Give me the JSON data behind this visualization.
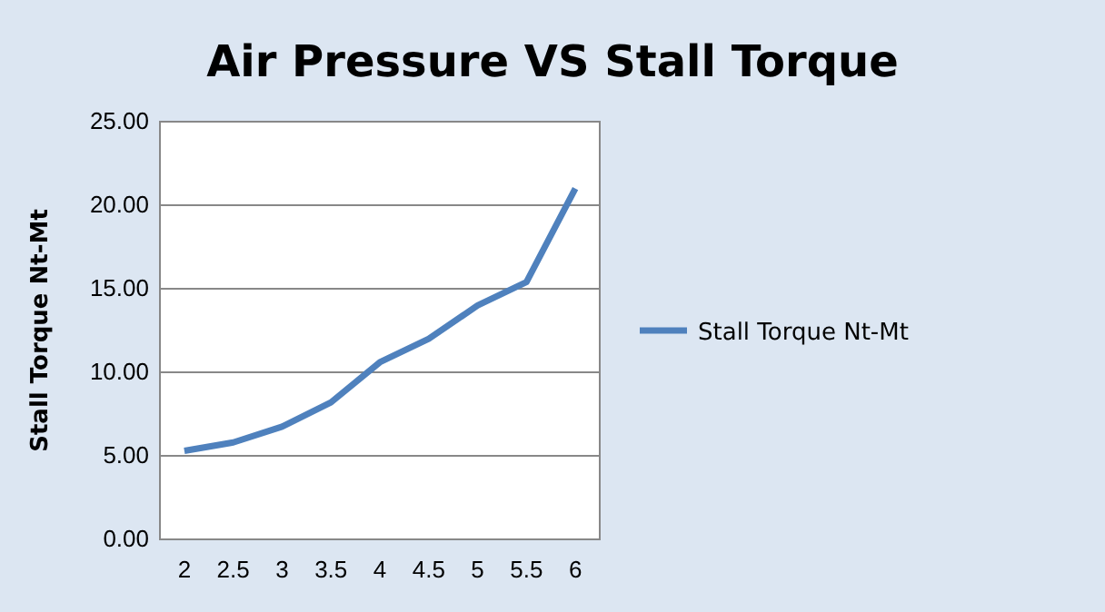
{
  "chart_data": {
    "type": "line",
    "title": "Air Pressure VS Stall Torque",
    "ylabel": "Stall Torque Nt-Mt",
    "categories": [
      "2",
      "2.5",
      "3",
      "3.5",
      "4",
      "4.5",
      "5",
      "5.5",
      "6"
    ],
    "series": [
      {
        "name": "Stall Torque Nt-Mt",
        "color": "#4f81bd",
        "values": [
          5.3,
          5.8,
          6.75,
          8.2,
          10.6,
          12.0,
          14.0,
          15.4,
          21.0
        ]
      }
    ],
    "ylim": [
      0,
      25
    ],
    "yticks": [
      {
        "value": 0,
        "label": "0.00"
      },
      {
        "value": 5,
        "label": "5.00"
      },
      {
        "value": 10,
        "label": "10.00"
      },
      {
        "value": 15,
        "label": "15.00"
      },
      {
        "value": 20,
        "label": "20.00"
      },
      {
        "value": 25,
        "label": "25.00"
      }
    ],
    "grid": "y",
    "legend": "right",
    "marker": "none",
    "line_style": "solid"
  }
}
